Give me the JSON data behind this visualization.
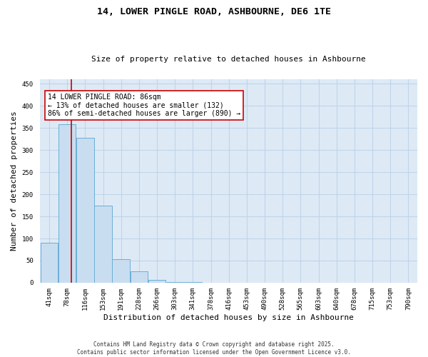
{
  "title": "14, LOWER PINGLE ROAD, ASHBOURNE, DE6 1TE",
  "subtitle": "Size of property relative to detached houses in Ashbourne",
  "xlabel": "Distribution of detached houses by size in Ashbourne",
  "ylabel": "Number of detached properties",
  "bar_color": "#c9ddf0",
  "bar_edge_color": "#6aaed6",
  "background_color": "#ddeaf6",
  "bins": [
    "41sqm",
    "78sqm",
    "116sqm",
    "153sqm",
    "191sqm",
    "228sqm",
    "266sqm",
    "303sqm",
    "341sqm",
    "378sqm",
    "416sqm",
    "453sqm",
    "490sqm",
    "528sqm",
    "565sqm",
    "603sqm",
    "640sqm",
    "678sqm",
    "715sqm",
    "753sqm",
    "790sqm"
  ],
  "values": [
    90,
    358,
    328,
    175,
    53,
    25,
    7,
    2,
    1,
    0,
    0,
    0,
    0,
    0,
    0,
    0,
    0,
    0,
    0,
    0,
    0
  ],
  "ylim": [
    0,
    460
  ],
  "yticks": [
    0,
    50,
    100,
    150,
    200,
    250,
    300,
    350,
    400,
    450
  ],
  "property_line_x": 1.22,
  "property_line_color": "#cc0000",
  "annotation_text": "14 LOWER PINGLE ROAD: 86sqm\n← 13% of detached houses are smaller (132)\n86% of semi-detached houses are larger (890) →",
  "annotation_box_color": "#ffffff",
  "annotation_box_edge": "#cc0000",
  "footer": "Contains HM Land Registry data © Crown copyright and database right 2025.\nContains public sector information licensed under the Open Government Licence v3.0.",
  "grid_color": "#c0d4e8",
  "title_fontsize": 9.5,
  "subtitle_fontsize": 8,
  "ylabel_fontsize": 8,
  "xlabel_fontsize": 8,
  "tick_fontsize": 6.5,
  "footer_fontsize": 5.5,
  "annotation_fontsize": 7
}
